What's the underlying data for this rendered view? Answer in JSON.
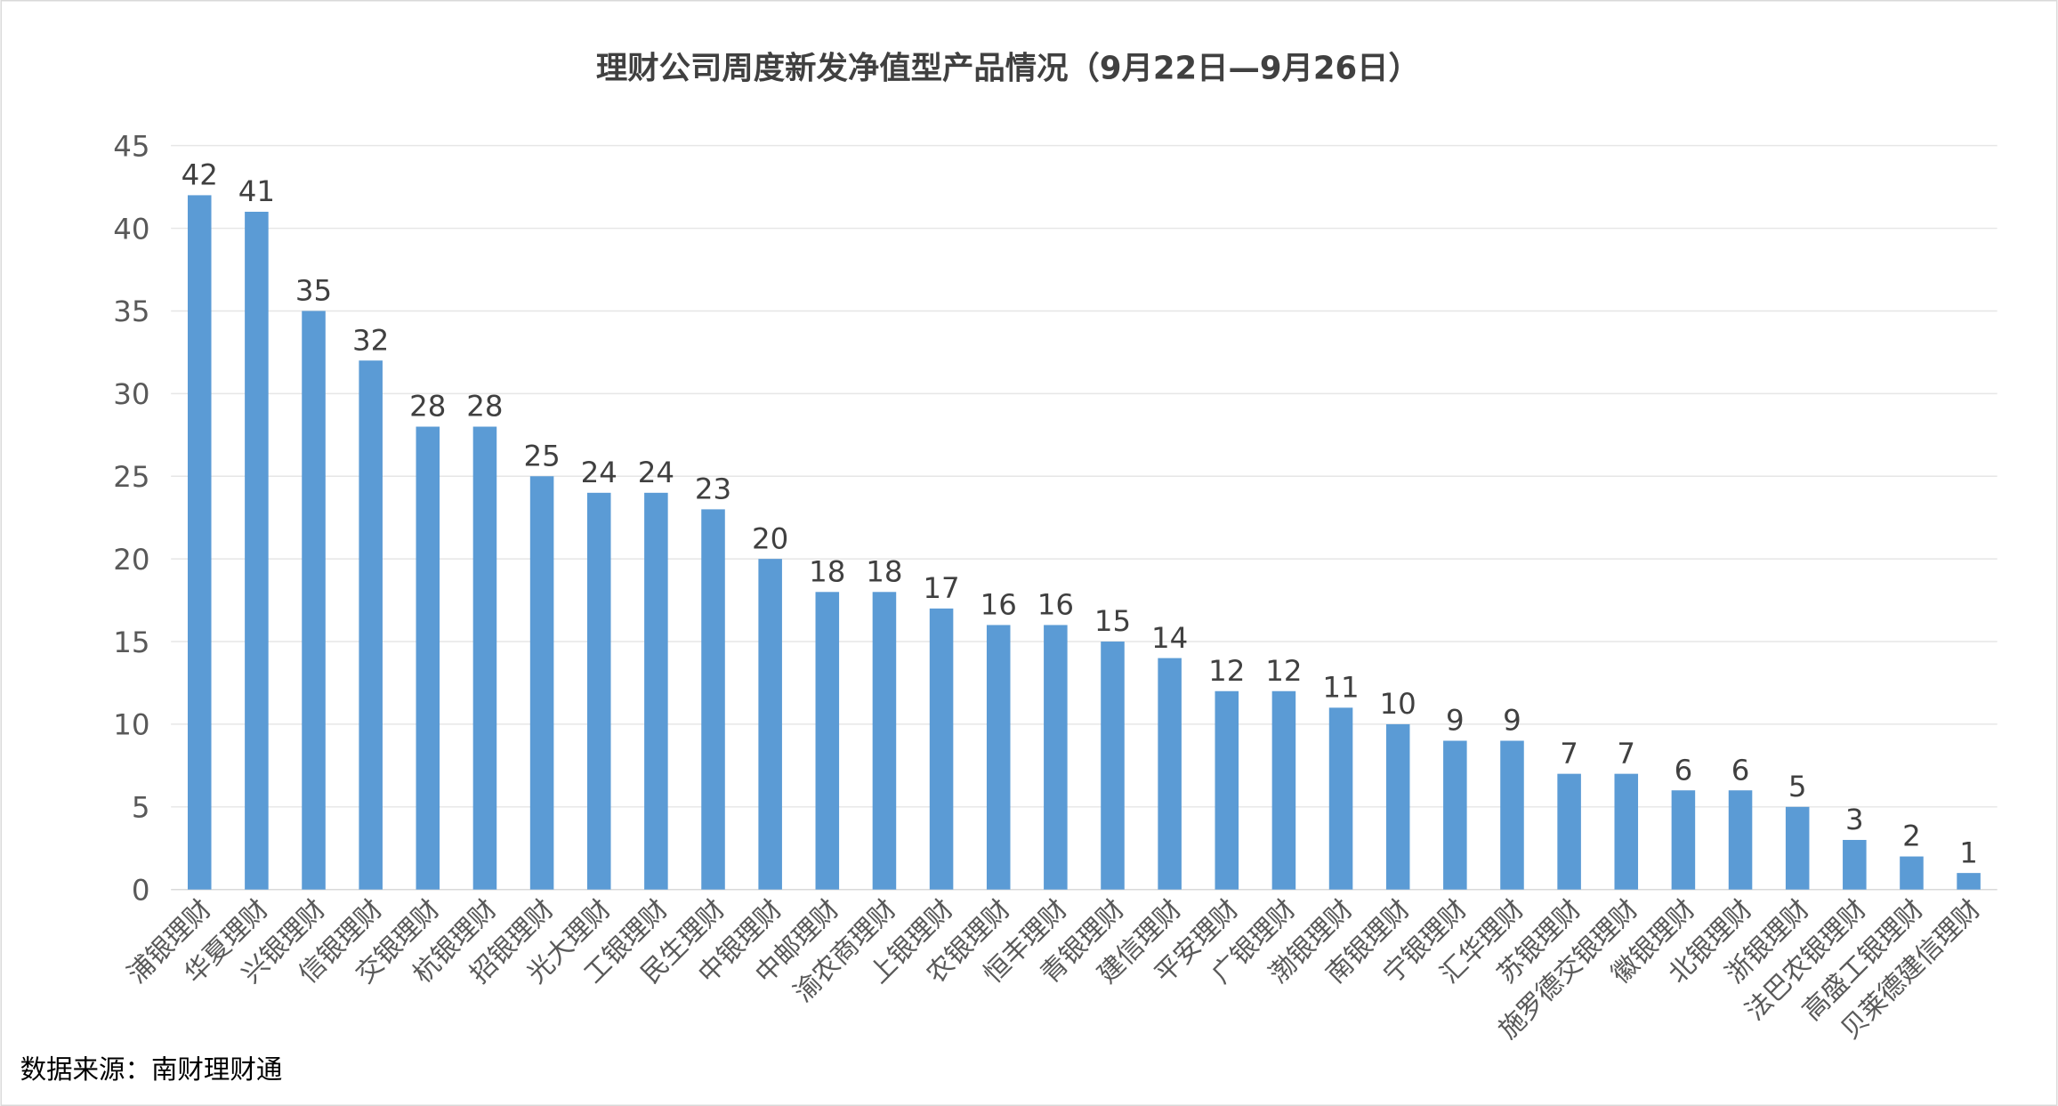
{
  "chart_data": {
    "type": "bar",
    "title": "理财公司周度新发净值型产品情况（9月22日—9月26日）",
    "xlabel": "",
    "ylabel": "",
    "ylim": [
      0,
      45
    ],
    "yticks": [
      0,
      5,
      10,
      15,
      20,
      25,
      30,
      35,
      40,
      45
    ],
    "grid": true,
    "bar_color": "#5b9bd5",
    "categories": [
      "浦银理财",
      "华夏理财",
      "兴银理财",
      "信银理财",
      "交银理财",
      "杭银理财",
      "招银理财",
      "光大理财",
      "工银理财",
      "民生理财",
      "中银理财",
      "中邮理财",
      "渝农商理财",
      "上银理财",
      "农银理财",
      "恒丰理财",
      "青银理财",
      "建信理财",
      "平安理财",
      "广银理财",
      "渤银理财",
      "南银理财",
      "宁银理财",
      "汇华理财",
      "苏银理财",
      "施罗德交银理财",
      "徽银理财",
      "北银理财",
      "浙银理财",
      "法巴农银理财",
      "高盛工银理财",
      "贝莱德建信理财"
    ],
    "values": [
      42,
      41,
      35,
      32,
      28,
      28,
      25,
      24,
      24,
      23,
      20,
      18,
      18,
      17,
      16,
      16,
      15,
      14,
      12,
      12,
      11,
      10,
      9,
      9,
      7,
      7,
      6,
      6,
      5,
      3,
      2,
      1
    ]
  },
  "source": "数据来源：南财理财通"
}
